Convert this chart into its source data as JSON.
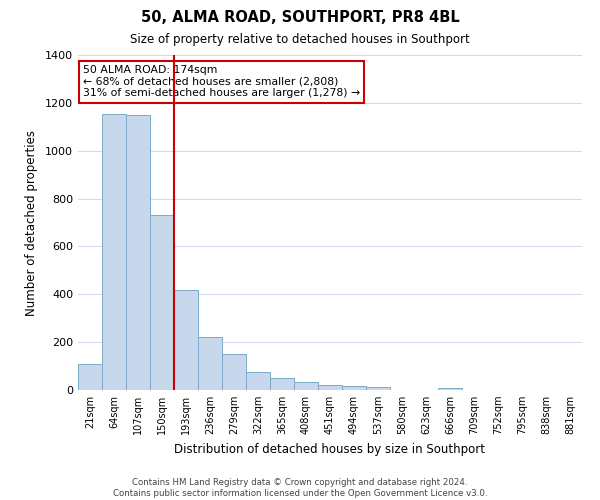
{
  "title": "50, ALMA ROAD, SOUTHPORT, PR8 4BL",
  "subtitle": "Size of property relative to detached houses in Southport",
  "xlabel": "Distribution of detached houses by size in Southport",
  "ylabel": "Number of detached properties",
  "bar_color": "#c8d8ec",
  "bar_edge_color": "#7aaac8",
  "categories": [
    "21sqm",
    "64sqm",
    "107sqm",
    "150sqm",
    "193sqm",
    "236sqm",
    "279sqm",
    "322sqm",
    "365sqm",
    "408sqm",
    "451sqm",
    "494sqm",
    "537sqm",
    "580sqm",
    "623sqm",
    "666sqm",
    "709sqm",
    "752sqm",
    "795sqm",
    "838sqm",
    "881sqm"
  ],
  "values": [
    110,
    1155,
    1150,
    730,
    420,
    220,
    150,
    75,
    50,
    33,
    20,
    15,
    12,
    0,
    0,
    8,
    0,
    0,
    0,
    0,
    0
  ],
  "ylim": [
    0,
    1400
  ],
  "yticks": [
    0,
    200,
    400,
    600,
    800,
    1000,
    1200,
    1400
  ],
  "annotation_title": "50 ALMA ROAD: 174sqm",
  "annotation_line1": "← 68% of detached houses are smaller (2,808)",
  "annotation_line2": "31% of semi-detached houses are larger (1,278) →",
  "annotation_box_color": "#ffffff",
  "annotation_box_edge": "#cc0000",
  "property_line_color": "#cc0000",
  "property_bin_idx": 3.5,
  "footer1": "Contains HM Land Registry data © Crown copyright and database right 2024.",
  "footer2": "Contains public sector information licensed under the Open Government Licence v3.0.",
  "background_color": "#ffffff",
  "grid_color": "#d0dcea"
}
